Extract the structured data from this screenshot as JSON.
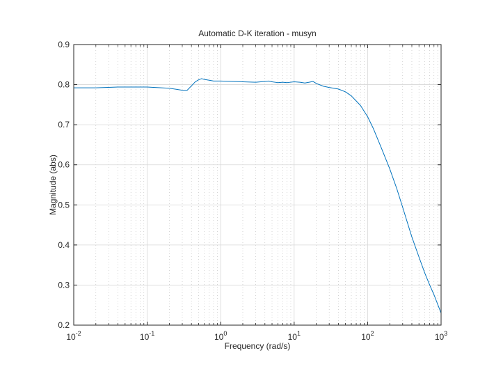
{
  "colors": {
    "line": "#0072BD",
    "axis": "#262626",
    "grid": "#d7d7d7",
    "background": "#ffffff"
  },
  "chart_data": {
    "type": "line",
    "title": "Automatic D-K iteration - musyn",
    "xlabel": "Frequency  (rad/s)",
    "ylabel": "Magnitude (abs)",
    "xscale": "log",
    "xlim": [
      0.01,
      1000
    ],
    "ylim": [
      0.2,
      0.9
    ],
    "grid": true,
    "minor_grid": true,
    "x_ticks": [
      {
        "value": 0.01,
        "base": "10",
        "exp": "-2"
      },
      {
        "value": 0.1,
        "base": "10",
        "exp": "-1"
      },
      {
        "value": 1,
        "base": "10",
        "exp": "0"
      },
      {
        "value": 10,
        "base": "10",
        "exp": "1"
      },
      {
        "value": 100,
        "base": "10",
        "exp": "2"
      },
      {
        "value": 1000,
        "base": "10",
        "exp": "3"
      }
    ],
    "y_ticks": [
      {
        "value": 0.2,
        "label": "0.2"
      },
      {
        "value": 0.3,
        "label": "0.3"
      },
      {
        "value": 0.4,
        "label": "0.4"
      },
      {
        "value": 0.5,
        "label": "0.5"
      },
      {
        "value": 0.6,
        "label": "0.6"
      },
      {
        "value": 0.7,
        "label": "0.7"
      },
      {
        "value": 0.8,
        "label": "0.8"
      },
      {
        "value": 0.9,
        "label": "0.9"
      }
    ],
    "series": [
      {
        "x": [
          0.01,
          0.02,
          0.04,
          0.1,
          0.2,
          0.3,
          0.35,
          0.4,
          0.45,
          0.5,
          0.55,
          0.6,
          0.7,
          0.8,
          1,
          1.5,
          2,
          3,
          4,
          4.5,
          5,
          6,
          7,
          8,
          10,
          12,
          14,
          16,
          18,
          20,
          25,
          30,
          40,
          50,
          60,
          80,
          100,
          120,
          150,
          200,
          250,
          300,
          400,
          500,
          600,
          700,
          800,
          1000
        ],
        "y": [
          0.792,
          0.792,
          0.794,
          0.794,
          0.791,
          0.786,
          0.786,
          0.797,
          0.807,
          0.812,
          0.815,
          0.813,
          0.811,
          0.809,
          0.809,
          0.808,
          0.807,
          0.806,
          0.808,
          0.809,
          0.807,
          0.805,
          0.806,
          0.805,
          0.807,
          0.806,
          0.804,
          0.806,
          0.808,
          0.803,
          0.796,
          0.793,
          0.789,
          0.782,
          0.772,
          0.748,
          0.72,
          0.69,
          0.647,
          0.59,
          0.54,
          0.494,
          0.42,
          0.37,
          0.33,
          0.3,
          0.276,
          0.23
        ]
      }
    ]
  }
}
